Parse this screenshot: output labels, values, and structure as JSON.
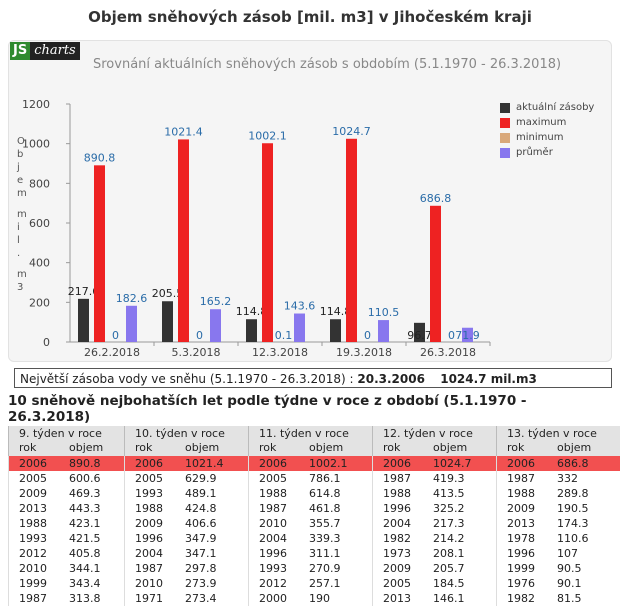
{
  "page_title": "Objem sněhových zásob [mil. m3] v Jihočeském kraji",
  "logo": {
    "js": "JS",
    "charts": "charts"
  },
  "chart_data": {
    "type": "bar",
    "title": "Srovnání aktuálních sněhových zásob s obdobím (5.1.1970 - 26.3.2018)",
    "ylabel": "Objem mil. m3",
    "ylim": [
      0,
      1200
    ],
    "yticks": [
      "0",
      "200",
      "400",
      "600",
      "800",
      "1000",
      "1200"
    ],
    "categories": [
      "26.2.2018",
      "5.3.2018",
      "12.3.2018",
      "19.3.2018",
      "26.3.2018"
    ],
    "series": [
      {
        "name": "aktuální zásoby",
        "color": "#333333",
        "values": [
          217.6,
          205.5,
          114.8,
          114.8,
          96.7
        ],
        "labels": [
          "217.6",
          "205.5",
          "114.8",
          "114.8",
          "96.7"
        ]
      },
      {
        "name": "maximum",
        "color": "#ee2222",
        "values": [
          890.8,
          1021.4,
          1002.1,
          1024.7,
          686.8
        ],
        "labels": [
          "890.8",
          "1021.4",
          "1002.1",
          "1024.7",
          "686.8"
        ]
      },
      {
        "name": "minimum",
        "color": "#d9a87a",
        "values": [
          0,
          0,
          0.1,
          0,
          0
        ],
        "labels": [
          "0",
          "0",
          "0.1",
          "0",
          "0"
        ]
      },
      {
        "name": "průměr",
        "color": "#8877ee",
        "values": [
          182.6,
          165.2,
          143.6,
          110.5,
          71.9
        ],
        "labels": [
          "182.6",
          "165.2",
          "143.6",
          "110.5",
          "71.9"
        ]
      }
    ],
    "legend_position": "top-right"
  },
  "info": {
    "label": "Největší zásoba vody ve sněhu (5.1.1970 - 26.3.2018) :",
    "date": "20.3.2006",
    "value": "1024.7 mil.m3"
  },
  "table_title": "10 sněhově nejbohatších let podle týdne v roce z období (5.1.1970 - 26.3.2018)",
  "weeks": [
    {
      "title": "9. týden v roce",
      "col_year": "rok",
      "col_value": "objem",
      "rows": [
        [
          "2006",
          "890.8"
        ],
        [
          "2005",
          "600.6"
        ],
        [
          "2009",
          "469.3"
        ],
        [
          "2013",
          "443.3"
        ],
        [
          "1988",
          "423.1"
        ],
        [
          "1993",
          "421.5"
        ],
        [
          "2012",
          "405.8"
        ],
        [
          "2010",
          "344.1"
        ],
        [
          "1999",
          "343.4"
        ],
        [
          "1987",
          "313.8"
        ]
      ]
    },
    {
      "title": "10. týden v roce",
      "col_year": "rok",
      "col_value": "objem",
      "rows": [
        [
          "2006",
          "1021.4"
        ],
        [
          "2005",
          "629.9"
        ],
        [
          "1993",
          "489.1"
        ],
        [
          "1988",
          "424.8"
        ],
        [
          "2009",
          "406.6"
        ],
        [
          "1996",
          "347.9"
        ],
        [
          "2004",
          "347.1"
        ],
        [
          "1987",
          "297.8"
        ],
        [
          "2010",
          "273.9"
        ],
        [
          "1971",
          "273.4"
        ]
      ]
    },
    {
      "title": "11. týden v roce",
      "col_year": "rok",
      "col_value": "objem",
      "rows": [
        [
          "2006",
          "1002.1"
        ],
        [
          "2005",
          "786.1"
        ],
        [
          "1988",
          "614.8"
        ],
        [
          "1987",
          "461.8"
        ],
        [
          "2010",
          "355.7"
        ],
        [
          "2004",
          "339.3"
        ],
        [
          "1996",
          "311.1"
        ],
        [
          "1993",
          "270.9"
        ],
        [
          "2012",
          "257.1"
        ],
        [
          "2000",
          "190"
        ]
      ]
    },
    {
      "title": "12. týden v roce",
      "col_year": "rok",
      "col_value": "objem",
      "rows": [
        [
          "2006",
          "1024.7"
        ],
        [
          "1987",
          "419.3"
        ],
        [
          "1988",
          "413.5"
        ],
        [
          "1996",
          "325.2"
        ],
        [
          "2004",
          "217.3"
        ],
        [
          "1982",
          "214.2"
        ],
        [
          "1973",
          "208.1"
        ],
        [
          "2009",
          "205.7"
        ],
        [
          "2005",
          "184.5"
        ],
        [
          "2013",
          "146.1"
        ]
      ]
    },
    {
      "title": "13. týden v roce",
      "col_year": "rok",
      "col_value": "objem",
      "rows": [
        [
          "2006",
          "686.8"
        ],
        [
          "1987",
          "332"
        ],
        [
          "1988",
          "289.8"
        ],
        [
          "2009",
          "190.5"
        ],
        [
          "2013",
          "174.3"
        ],
        [
          "1978",
          "110.6"
        ],
        [
          "1996",
          "107"
        ],
        [
          "1999",
          "90.5"
        ],
        [
          "1976",
          "90.1"
        ],
        [
          "1982",
          "81.5"
        ]
      ]
    }
  ]
}
